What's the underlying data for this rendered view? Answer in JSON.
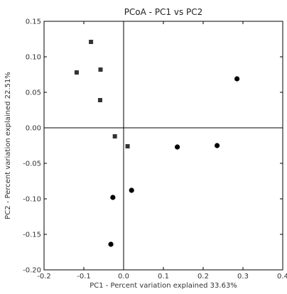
{
  "chart_data": {
    "type": "scatter",
    "title": "PCoA - PC1 vs PC2",
    "xlabel": "PC1 - Percent variation explained 33.63%",
    "ylabel": "PC2 - Percent variation explained 22.51%",
    "xlim": [
      -0.2,
      0.4
    ],
    "ylim": [
      -0.2,
      0.15
    ],
    "x_ticks": [
      -0.2,
      -0.1,
      0.0,
      0.1,
      0.2,
      0.3,
      0.4
    ],
    "x_tick_labels": [
      "-0.2",
      "-0.1",
      "0.0",
      "0.1",
      "0.2",
      "0.3",
      "0.4"
    ],
    "y_ticks": [
      -0.2,
      -0.15,
      -0.1,
      -0.05,
      0.0,
      0.05,
      0.1,
      0.15
    ],
    "y_tick_labels": [
      "-0.20",
      "-0.15",
      "-0.10",
      "-0.05",
      "0.00",
      "0.05",
      "0.10",
      "0.15"
    ],
    "reference_lines": {
      "x": 0,
      "y": 0
    },
    "grid": false,
    "series": [
      {
        "marker": "square",
        "color": "#333333",
        "points": [
          {
            "x": -0.082,
            "y": 0.121
          },
          {
            "x": -0.118,
            "y": 0.078
          },
          {
            "x": -0.058,
            "y": 0.082
          },
          {
            "x": -0.059,
            "y": 0.039
          },
          {
            "x": -0.022,
            "y": -0.012
          },
          {
            "x": 0.01,
            "y": -0.026
          }
        ]
      },
      {
        "marker": "circle",
        "color": "#000000",
        "points": [
          {
            "x": 0.285,
            "y": 0.069
          },
          {
            "x": 0.135,
            "y": -0.027
          },
          {
            "x": 0.235,
            "y": -0.025
          },
          {
            "x": 0.02,
            "y": -0.088
          },
          {
            "x": -0.027,
            "y": -0.098
          },
          {
            "x": -0.032,
            "y": -0.164
          }
        ]
      }
    ]
  }
}
